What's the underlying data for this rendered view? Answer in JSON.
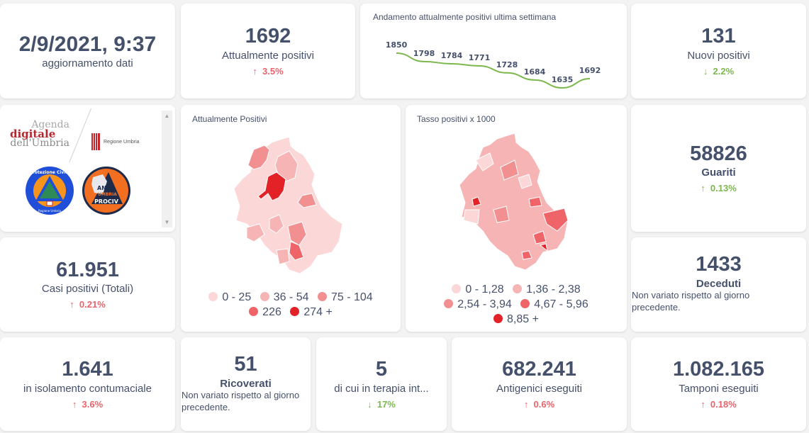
{
  "update": {
    "datetime": "2/9/2021, 9:37",
    "label": "aggiornamento dati"
  },
  "attualmente_positivi": {
    "value": "1692",
    "label": "Attualmente positivi",
    "arrow": "↑",
    "delta": "3.5%",
    "trend": "up-red"
  },
  "trend_chart": {
    "title": "Andamento attualmente positivi ultima settimana",
    "line_color": "#7cb84d"
  },
  "chart_data": {
    "type": "line",
    "title": "Andamento attualmente positivi ultima settimana",
    "x": [
      1,
      2,
      3,
      4,
      5,
      6,
      7,
      8
    ],
    "values": [
      1850,
      1798,
      1784,
      1771,
      1728,
      1684,
      1635,
      1692
    ],
    "data_labels": [
      "1850",
      "1798",
      "1784",
      "1771",
      "1728",
      "1684",
      "1635",
      "1692"
    ],
    "xlabel": "",
    "ylabel": "",
    "grid": false
  },
  "nuovi_positivi": {
    "value": "131",
    "label": "Nuovi positivi",
    "arrow": "↓",
    "delta": "2.2%",
    "trend": "down-green"
  },
  "logos": {
    "agenda_line1": "Agenda",
    "agenda_line2": "digitale",
    "agenda_line3": "dell'Umbria",
    "regione": "Regione Umbria",
    "protezione": "Protezione Civile",
    "protezione_sub": "Regione Umbria",
    "anci_1": "ANCI",
    "anci_2": "UMBRIA",
    "anci_3": "PROCIV"
  },
  "map_positivi": {
    "title": "Attualmente Positivi",
    "legend": [
      {
        "label": "0 - 25",
        "color": "#fbd7d8"
      },
      {
        "label": "36 - 54",
        "color": "#f7b4b5"
      },
      {
        "label": "75 - 104",
        "color": "#f28f91"
      },
      {
        "label": "226",
        "color": "#ee6468"
      },
      {
        "label": "274 +",
        "color": "#e32227"
      }
    ]
  },
  "map_tasso": {
    "title": "Tasso positivi x 1000",
    "legend": [
      {
        "label": "0 - 1,28",
        "color": "#fbd7d8"
      },
      {
        "label": "1,36 - 2,38",
        "color": "#f7b4b5"
      },
      {
        "label": "2,54 - 3,94",
        "color": "#f28f91"
      },
      {
        "label": "4,67 - 5,96",
        "color": "#ee6468"
      },
      {
        "label": "8,85 +",
        "color": "#e32227"
      }
    ]
  },
  "guariti": {
    "value": "58826",
    "label": "Guariti",
    "arrow": "↑",
    "delta": "0.13%",
    "trend": "up-green"
  },
  "casi_totali": {
    "value": "61.951",
    "label": "Casi positivi (Totali)",
    "arrow": "↑",
    "delta": "0.21%",
    "trend": "up-red"
  },
  "deceduti": {
    "value": "1433",
    "label": "Deceduti",
    "note": "Non variato rispetto al giorno precedente."
  },
  "isolamento": {
    "value": "1.641",
    "label": "in isolamento contumaciale",
    "arrow": "↑",
    "delta": "3.6%",
    "trend": "up-red"
  },
  "ricoverati": {
    "value": "51",
    "label": "Ricoverati",
    "note": "Non variato rispetto al giorno precedente."
  },
  "terapia": {
    "value": "5",
    "label": "di cui in terapia int...",
    "arrow": "↓",
    "delta": "17%",
    "trend": "down-green"
  },
  "antigenici": {
    "value": "682.241",
    "label": "Antigenici eseguiti",
    "arrow": "↑",
    "delta": "0.6%",
    "trend": "up-red"
  },
  "tamponi": {
    "value": "1.082.165",
    "label": "Tamponi eseguiti",
    "arrow": "↑",
    "delta": "0.18%",
    "trend": "up-red"
  },
  "colors": {
    "text": "#45506b",
    "up_red": "#e9646a",
    "green": "#7cb84d"
  }
}
